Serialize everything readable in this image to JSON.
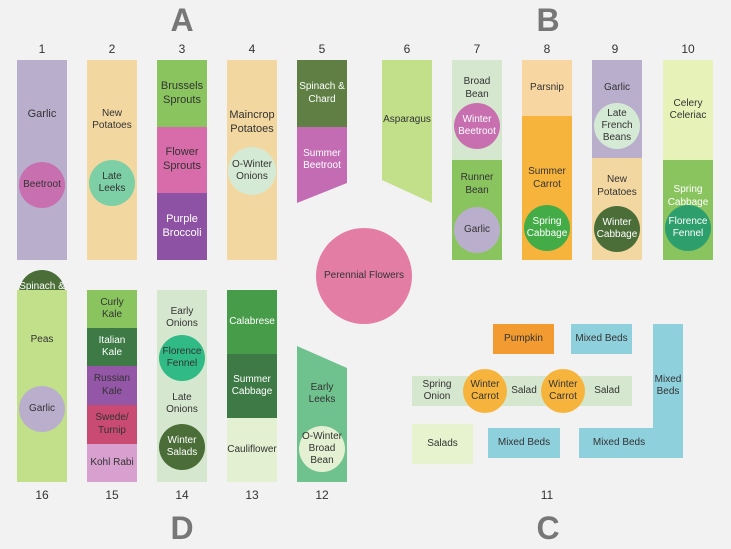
{
  "sections": {
    "a": "A",
    "b": "B",
    "c": "C",
    "d": "D"
  },
  "numbers": {
    "n1": "1",
    "n2": "2",
    "n3": "3",
    "n4": "4",
    "n5": "5",
    "n6": "6",
    "n7": "7",
    "n8": "8",
    "n9": "9",
    "n10": "10",
    "n11": "11",
    "n12": "12",
    "n13": "13",
    "n14": "14",
    "n15": "15",
    "n16": "16"
  },
  "beds": {
    "b1": {
      "top": "Garlic",
      "circle1": "Beetroot",
      "circle2": "Spinach & Chard"
    },
    "b2": {
      "top": "New Potatoes",
      "circle": "Late Leeks"
    },
    "b3": {
      "s1": "Brussels Sprouts",
      "s2": "Flower Sprouts",
      "s3": "Purple Broccoli"
    },
    "b4": {
      "top": "Maincrop Potatoes",
      "circle": "O-Winter Onions"
    },
    "b5": {
      "s1": "Spinach & Chard",
      "s2": "Summer Beetroot"
    },
    "b6": {
      "label": "Asparagus"
    },
    "b7": {
      "s1": "Broad Bean",
      "circle1": "Winter Beetroot",
      "s2": "Runner Bean",
      "circle2": "Garlic"
    },
    "b8": {
      "s1": "Parsnip",
      "s2": "Summer Carrot",
      "circle": "Spring Cabbage"
    },
    "b9": {
      "s1": "Garlic",
      "circle1": "Late French Beans",
      "s2": "New Potatoes",
      "circle2": "Winter Cabbage"
    },
    "b10": {
      "s1": "Celery Celeriac",
      "s2": "Spring Cabbage",
      "circle": "Florence Fennel"
    },
    "center": {
      "label": "Perennial Flowers"
    },
    "b16": {
      "top": "Peas",
      "circle": "Garlic"
    },
    "b15": {
      "s1": "Curly Kale",
      "s2": "Italian Kale",
      "s3": "Russian Kale",
      "s4": "Swede/ Turnip",
      "s5": "Kohl Rabi"
    },
    "b14": {
      "s1": "Early Onions",
      "circle1": "Florence Fennel",
      "s2": "Late Onions",
      "circle2": "Winter Salads"
    },
    "b13": {
      "s1": "Calabrese",
      "s2": "Summer Cabbage",
      "s3": "Cauliflower"
    },
    "b12": {
      "s1": "Early Leeks",
      "circle": "O-Winter Broad Bean"
    },
    "b11": {
      "pumpkin": "Pumpkin",
      "mixed1": "Mixed Beds",
      "mixed_tall": "Mixed Beds",
      "spring_onion": "Spring Onion",
      "winter_carrot1": "Winter Carrot",
      "salad1": "Salad",
      "winter_carrot2": "Winter Carrot",
      "salad2": "Salad",
      "salads": "Salads",
      "mixed2": "Mixed Beds",
      "mixed3": "Mixed Beds"
    }
  }
}
